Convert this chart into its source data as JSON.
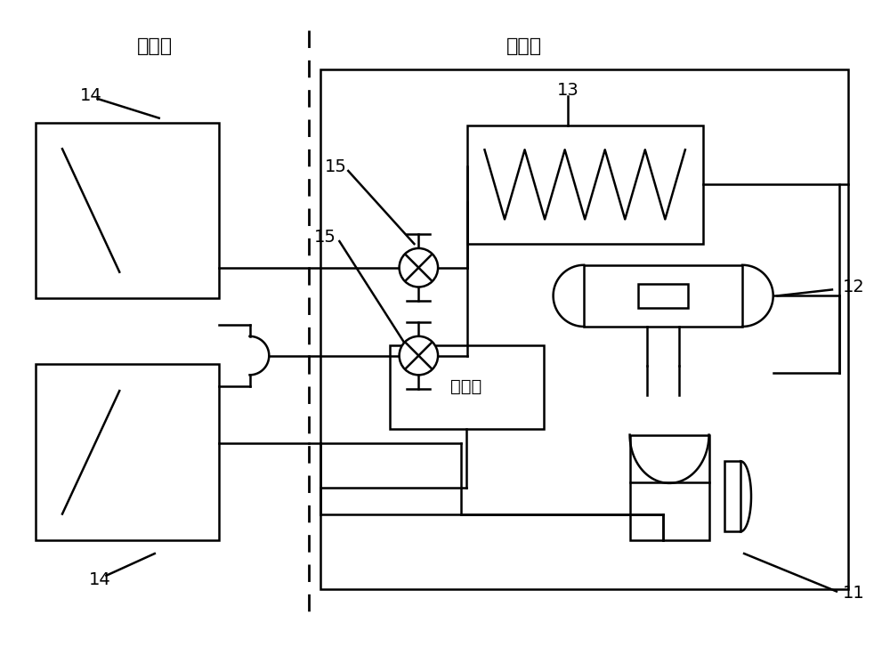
{
  "indoor_label": "室内侧",
  "outdoor_label": "室外侧",
  "controller_label": "控制器",
  "label_11": "11",
  "label_12": "12",
  "label_13": "13",
  "label_14": "14",
  "label_15": "15",
  "bg_color": "#ffffff",
  "line_color": "#000000"
}
